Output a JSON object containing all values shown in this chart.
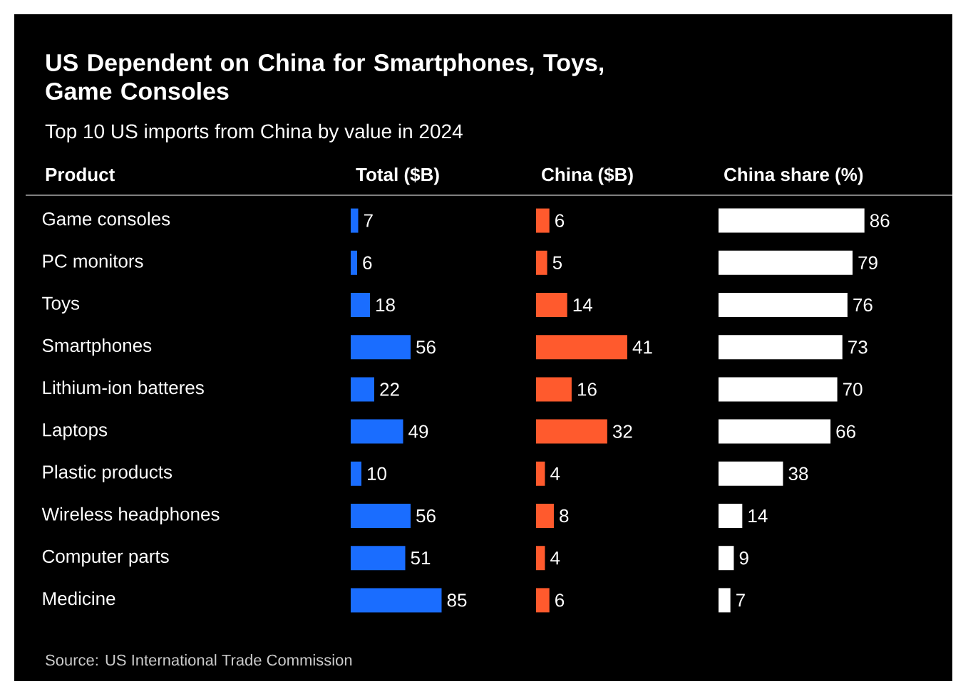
{
  "chart_data": [
    {
      "type": "bar",
      "orientation": "horizontal",
      "title": "US Dependent on China for Smartphones, Toys, Game Consoles",
      "subtitle": "Top 10 US imports from China by value in 2024",
      "ylabel": "Product",
      "xlabel": "Total ($B)",
      "annotations": [
        "Source: US International Trade Commission"
      ],
      "categories": [
        "Game consoles",
        "PC monitors",
        "Toys",
        "Smartphones",
        "Lithium-ion batteres",
        "Laptops",
        "Plastic products",
        "Wireless headphones",
        "Computer parts",
        "Medicine"
      ],
      "values": [
        7,
        6,
        18,
        56,
        22,
        49,
        10,
        56,
        51,
        85
      ],
      "color": "#1a6dff",
      "data_labels": true,
      "tick_labels": "y"
    },
    {
      "type": "bar",
      "orientation": "horizontal",
      "xlabel": "China ($B)",
      "categories": [
        null,
        null,
        null,
        null,
        null,
        null,
        null,
        null,
        null,
        null
      ],
      "values": [
        6,
        5,
        14,
        41,
        16,
        32,
        4,
        8,
        4,
        6
      ],
      "color": "#ff5a2d",
      "data_labels": true,
      "tick_labels": false
    },
    {
      "type": "bar",
      "orientation": "horizontal",
      "xlabel": "China share (%)",
      "categories": [
        null,
        null,
        null,
        null,
        null,
        null,
        null,
        null,
        null,
        null
      ],
      "values": [
        86,
        79,
        76,
        73,
        70,
        66,
        38,
        14,
        9,
        7
      ],
      "color": "#ffffff",
      "data_labels": true,
      "tick_labels": false
    }
  ]
}
